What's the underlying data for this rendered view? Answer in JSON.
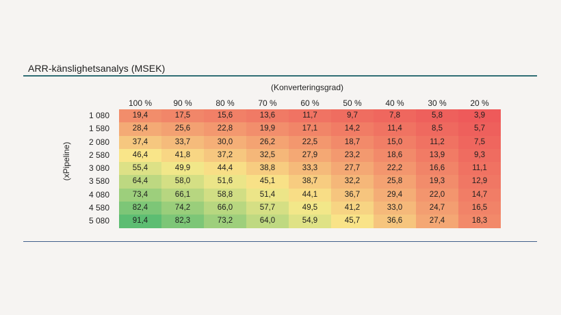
{
  "chart_data": {
    "type": "heatmap",
    "title": "ARR-känslighetsanalys (MSEK)",
    "xlabel": "(Konverteringsgrad)",
    "ylabel": "(xPipeline)",
    "x_categories": [
      "100 %",
      "90 %",
      "80 %",
      "70 %",
      "60 %",
      "50 %",
      "40 %",
      "30 %",
      "20 %"
    ],
    "y_categories": [
      "1 080",
      "1 580",
      "2 080",
      "2 580",
      "3 080",
      "3 580",
      "4 080",
      "4 580",
      "5 080"
    ],
    "values": [
      [
        "19,4",
        "17,5",
        "15,6",
        "13,6",
        "11,7",
        "9,7",
        "7,8",
        "5,8",
        "3,9"
      ],
      [
        "28,4",
        "25,6",
        "22,8",
        "19,9",
        "17,1",
        "14,2",
        "11,4",
        "8,5",
        "5,7"
      ],
      [
        "37,4",
        "33,7",
        "30,0",
        "26,2",
        "22,5",
        "18,7",
        "15,0",
        "11,2",
        "7,5"
      ],
      [
        "46,4",
        "41,8",
        "37,2",
        "32,5",
        "27,9",
        "23,2",
        "18,6",
        "13,9",
        "9,3"
      ],
      [
        "55,4",
        "49,9",
        "44,4",
        "38,8",
        "33,3",
        "27,7",
        "22,2",
        "16,6",
        "11,1"
      ],
      [
        "64,4",
        "58,0",
        "51,6",
        "45,1",
        "38,7",
        "32,2",
        "25,8",
        "19,3",
        "12,9"
      ],
      [
        "73,4",
        "66,1",
        "58,8",
        "51,4",
        "44,1",
        "36,7",
        "29,4",
        "22,0",
        "14,7"
      ],
      [
        "82,4",
        "74,2",
        "66,0",
        "57,7",
        "49,5",
        "41,2",
        "33,0",
        "24,7",
        "16,5"
      ],
      [
        "91,4",
        "82,3",
        "73,2",
        "64,0",
        "54,9",
        "45,7",
        "36,6",
        "27,4",
        "18,3"
      ]
    ],
    "colorscale": {
      "low": "#ee5a5a",
      "mid": "#f9e98a",
      "high": "#5dbd72"
    },
    "legend": "none",
    "grid": false
  }
}
